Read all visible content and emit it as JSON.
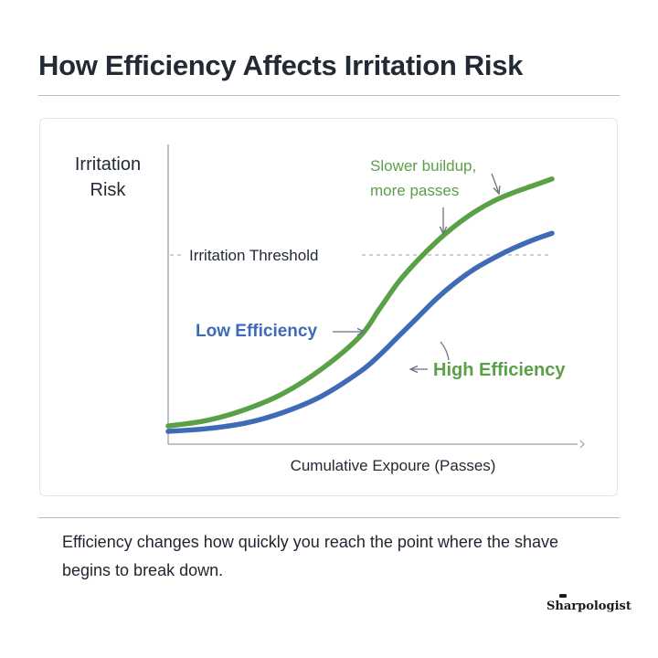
{
  "header": {
    "title": "How Efficiency Affects Irritation Risk"
  },
  "footer": {
    "caption": "Efficiency changes how quickly you reach the point where the shave begins to break down.",
    "brand": "Sharpologist"
  },
  "colors": {
    "green": "#5aa047",
    "blue": "#3f6ab5",
    "axis": "#9aa0ab",
    "text": "#222a35"
  },
  "chart_data": {
    "type": "line",
    "title": "",
    "xlabel": "Cumulative Expoure (Passes)",
    "ylabel": "Irritation Risk",
    "xlim": [
      0,
      100
    ],
    "ylim": [
      0,
      100
    ],
    "grid": false,
    "threshold": {
      "label": "Irritation Threshold",
      "value": 66
    },
    "series": [
      {
        "name": "Low Efficiency",
        "color": "#5aa047",
        "x": [
          0,
          10,
          20,
          30,
          40,
          50,
          55,
          60,
          65,
          70,
          75,
          80,
          85,
          90,
          95,
          100
        ],
        "y": [
          3,
          5,
          9,
          15,
          24,
          36,
          46,
          56,
          64,
          71,
          77,
          82,
          86,
          89,
          91.5,
          94
        ]
      },
      {
        "name": "High Efficiency",
        "color": "#3f6ab5",
        "x": [
          0,
          10,
          20,
          30,
          40,
          50,
          55,
          60,
          65,
          70,
          75,
          80,
          85,
          90,
          95,
          100
        ],
        "y": [
          1,
          2,
          4,
          8,
          14,
          23,
          29,
          36,
          43,
          50,
          56,
          61,
          65,
          68.5,
          71.5,
          74
        ]
      }
    ],
    "annotations": [
      {
        "id": "green-note",
        "lines": [
          "Slower buildup,",
          "more passes"
        ]
      }
    ]
  }
}
